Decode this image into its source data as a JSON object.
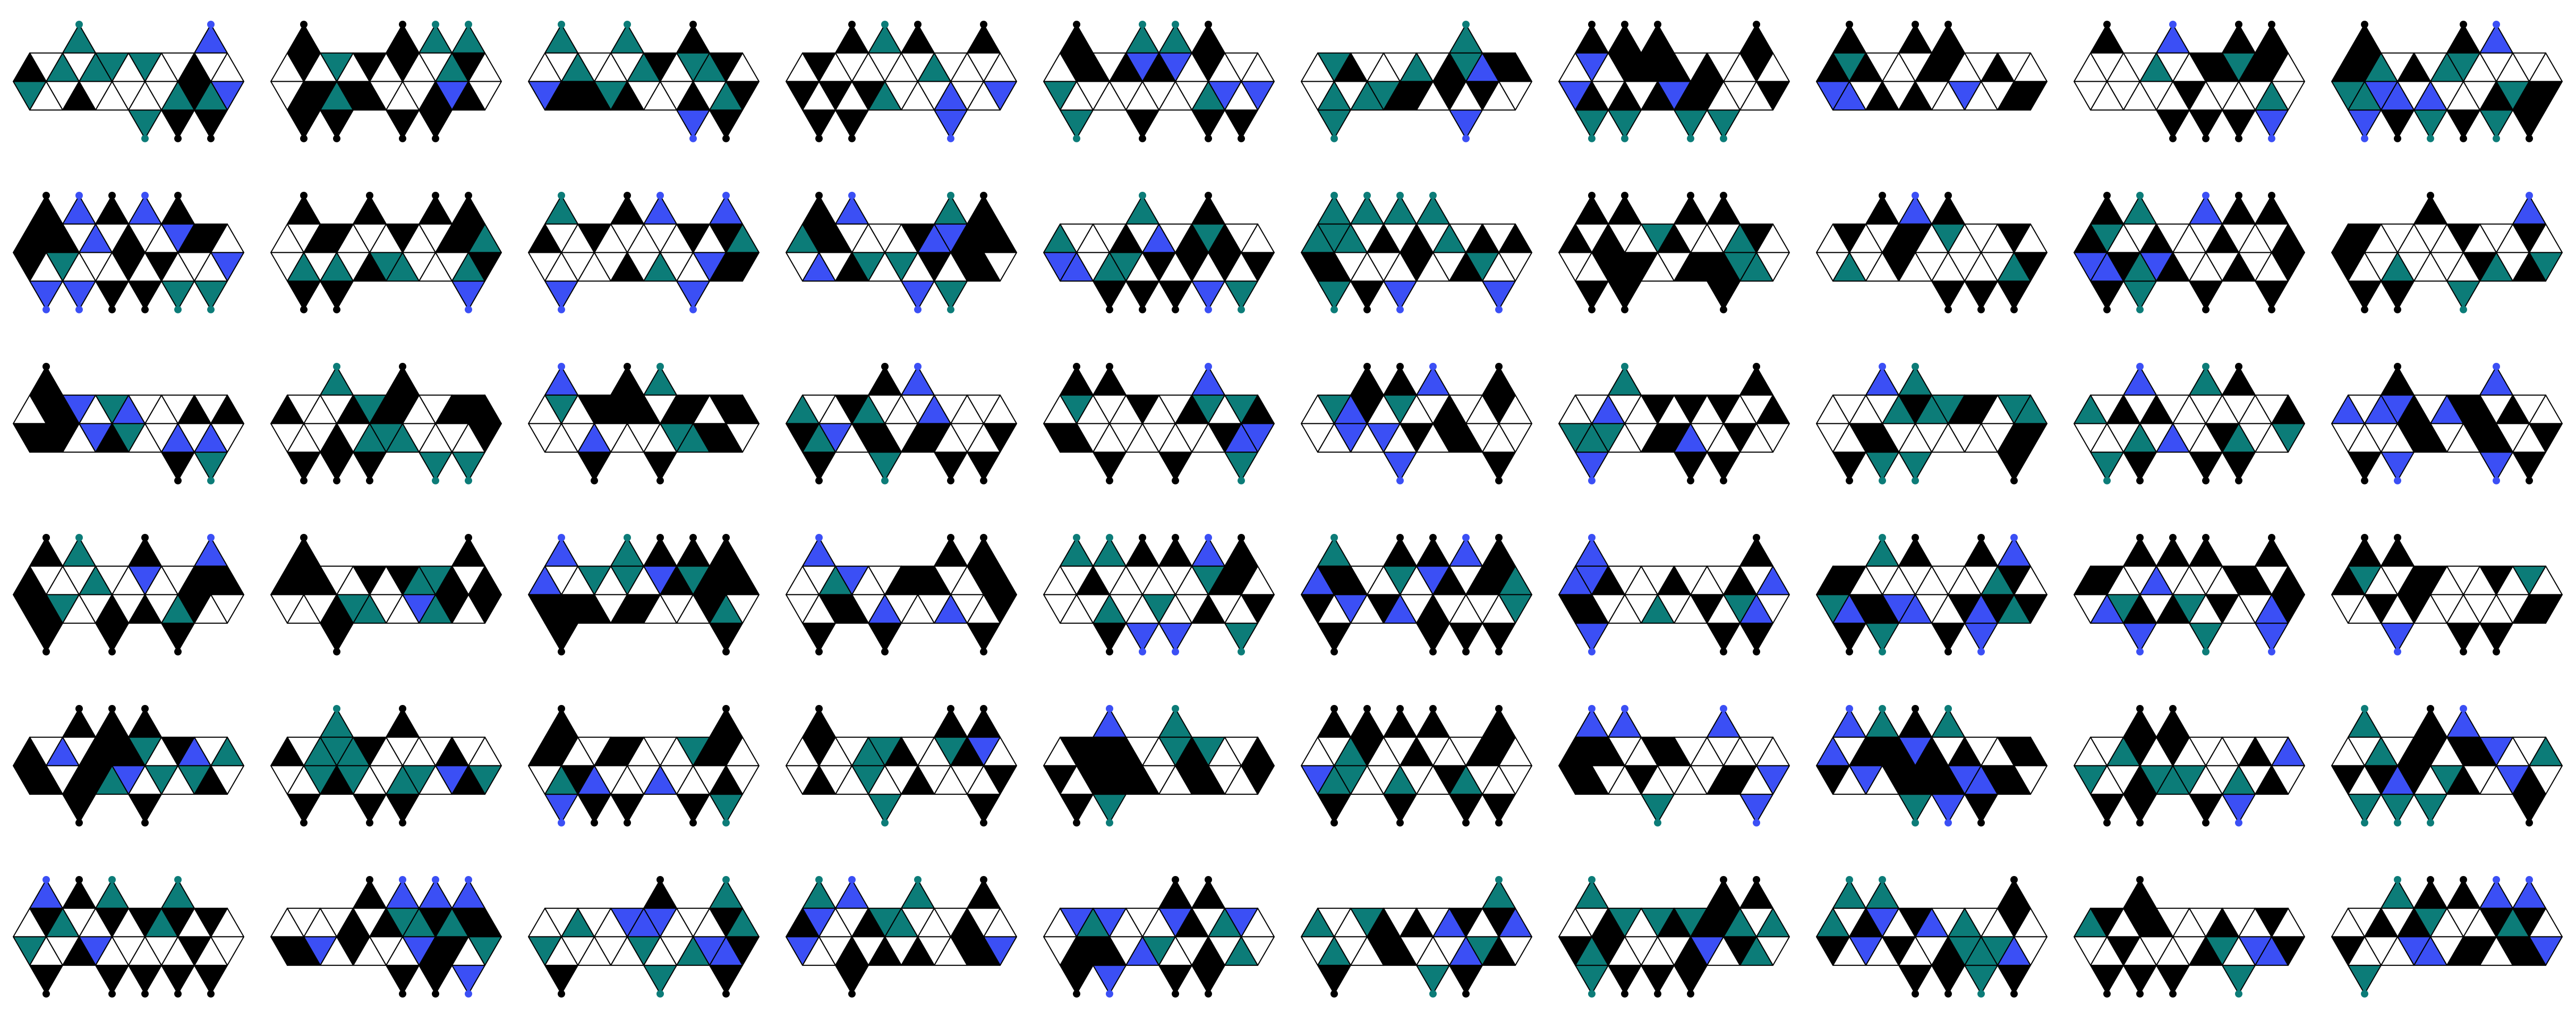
{
  "grid": {
    "rows": 6,
    "cols": 10
  },
  "palette": {
    "empty": "#ffffff",
    "black": "#000000",
    "blue": "#3b4ff5",
    "teal": "#0c7c78"
  }
}
